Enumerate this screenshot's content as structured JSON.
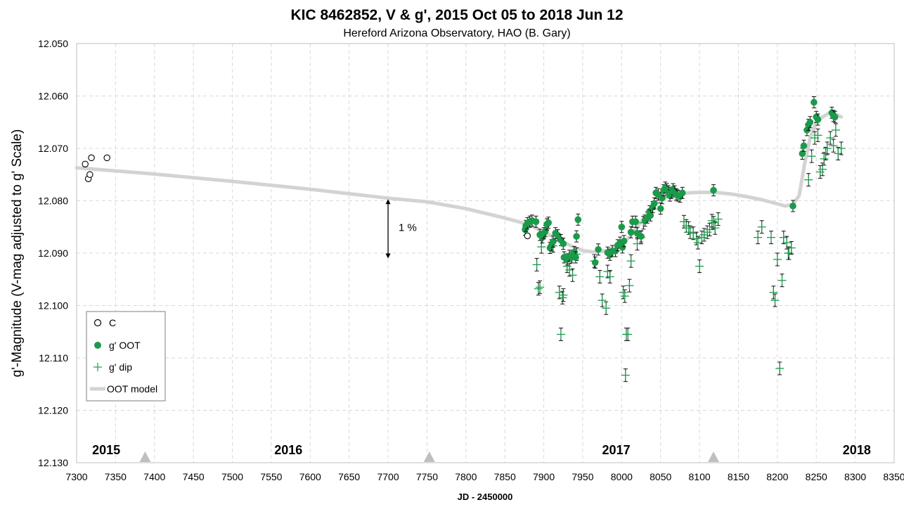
{
  "chart_data": {
    "type": "scatter",
    "title": "KIC 8462852, V & g', 2015 Oct 05 to 2018 Jun 12",
    "subtitle": "Hereford Arizona Observatory, HAO (B. Gary)",
    "xlabel": "JD - 2450000",
    "ylabel": "g'-Magnitude  (V-mag adjusted to g' Scale)",
    "xlim": [
      7300,
      8350
    ],
    "ylim": [
      12.13,
      12.05
    ],
    "y_inverted": true,
    "x_ticks": [
      "7300",
      "7350",
      "7400",
      "7450",
      "7500",
      "7550",
      "7600",
      "7650",
      "7700",
      "7750",
      "7800",
      "7850",
      "7900",
      "7950",
      "8000",
      "8050",
      "8100",
      "8150",
      "8200",
      "8250",
      "8300",
      "8350"
    ],
    "y_ticks": [
      "12.050",
      "12.060",
      "12.070",
      "12.080",
      "12.090",
      "12.100",
      "12.110",
      "12.120",
      "12.130"
    ],
    "grid": true,
    "legend_position": "lower-left",
    "year_labels": [
      {
        "label": "2015",
        "x": 7338
      },
      {
        "label": "2016",
        "x": 7572
      },
      {
        "label": "2017",
        "x": 7993
      },
      {
        "label": "2018",
        "x": 8302
      }
    ],
    "year_markers": [
      7388,
      7753,
      8118
    ],
    "annotation": {
      "label": "1 %",
      "x": 7700,
      "y_top": 12.0797,
      "y_bottom": 12.091
    },
    "colors": {
      "C": "#000000",
      "oot": "#1a9b4a",
      "dip": "#1a9b4a",
      "model": "#d3d3d3",
      "grid": "#d9d9d9",
      "marker": "#bfbfbf"
    },
    "series": [
      {
        "name": "C",
        "marker": "open-circle",
        "points": [
          [
            7311,
            12.073
          ],
          [
            7315,
            12.0758
          ],
          [
            7317,
            12.075
          ],
          [
            7319,
            12.0718
          ],
          [
            7339,
            12.0718
          ],
          [
            7879,
            12.0867
          ]
        ]
      },
      {
        "name": "g' OOT",
        "marker": "filled-circle",
        "points": [
          [
            7876,
            12.0855
          ],
          [
            7877,
            12.0848
          ],
          [
            7879,
            12.0843
          ],
          [
            7882,
            12.084
          ],
          [
            7885,
            12.0838
          ],
          [
            7890,
            12.084
          ],
          [
            7895,
            12.0865
          ],
          [
            7898,
            12.087
          ],
          [
            7900,
            12.0862
          ],
          [
            7902,
            12.0858
          ],
          [
            7904,
            12.0845
          ],
          [
            7906,
            12.0842
          ],
          [
            7908,
            12.089
          ],
          [
            7910,
            12.0885
          ],
          [
            7912,
            12.0878
          ],
          [
            7915,
            12.0862
          ],
          [
            7918,
            12.0866
          ],
          [
            7922,
            12.0875
          ],
          [
            7925,
            12.0882
          ],
          [
            7926,
            12.0908
          ],
          [
            7930,
            12.0912
          ],
          [
            7933,
            12.0905
          ],
          [
            7936,
            12.0908
          ],
          [
            7939,
            12.0898
          ],
          [
            7941,
            12.0908
          ],
          [
            7942,
            12.0868
          ],
          [
            7944,
            12.0836
          ],
          [
            7966,
            12.0918
          ],
          [
            7970,
            12.0893
          ],
          [
            7982,
            12.0899
          ],
          [
            7985,
            12.0903
          ],
          [
            7988,
            12.0896
          ],
          [
            7992,
            12.0896
          ],
          [
            7995,
            12.0885
          ],
          [
            7998,
            12.088
          ],
          [
            8001,
            12.0889
          ],
          [
            8003,
            12.0877
          ],
          [
            8000,
            12.085
          ],
          [
            8012,
            12.086
          ],
          [
            8014,
            12.084
          ],
          [
            8018,
            12.084
          ],
          [
            8020,
            12.0862
          ],
          [
            8025,
            12.0868
          ],
          [
            8030,
            12.0838
          ],
          [
            8033,
            12.0832
          ],
          [
            8036,
            12.082
          ],
          [
            8037,
            12.0828
          ],
          [
            8040,
            12.0812
          ],
          [
            8042,
            12.0805
          ],
          [
            8044,
            12.0785
          ],
          [
            8047,
            12.0788
          ],
          [
            8050,
            12.0815
          ],
          [
            8052,
            12.0795
          ],
          [
            8054,
            12.078
          ],
          [
            8056,
            12.0775
          ],
          [
            8058,
            12.0778
          ],
          [
            8060,
            12.0782
          ],
          [
            8062,
            12.079
          ],
          [
            8064,
            12.0785
          ],
          [
            8066,
            12.0778
          ],
          [
            8068,
            12.0782
          ],
          [
            8070,
            12.0788
          ],
          [
            8072,
            12.079
          ],
          [
            8075,
            12.0792
          ],
          [
            8078,
            12.0785
          ],
          [
            8118,
            12.078
          ],
          [
            8220,
            12.081
          ],
          [
            8232,
            12.071
          ],
          [
            8234,
            12.0695
          ],
          [
            8238,
            12.0665
          ],
          [
            8240,
            12.0655
          ],
          [
            8242,
            12.065
          ],
          [
            8247,
            12.0612
          ],
          [
            8250,
            12.064
          ],
          [
            8252,
            12.0645
          ],
          [
            8270,
            12.0632
          ],
          [
            8272,
            12.0638
          ],
          [
            8274,
            12.064
          ]
        ]
      },
      {
        "name": "g' dip",
        "marker": "plus",
        "points": [
          [
            7891,
            12.0922
          ],
          [
            7893,
            12.0968
          ],
          [
            7895,
            12.0965
          ],
          [
            7897,
            12.0888
          ],
          [
            7912,
            12.0886
          ],
          [
            7920,
            12.0975
          ],
          [
            7922,
            12.1055
          ],
          [
            7924,
            12.0985
          ],
          [
            7925,
            12.098
          ],
          [
            7930,
            12.0925
          ],
          [
            7933,
            12.0932
          ],
          [
            7937,
            12.0942
          ],
          [
            7942,
            12.0902
          ],
          [
            7965,
            12.0915
          ],
          [
            7972,
            12.0945
          ],
          [
            7975,
            12.099
          ],
          [
            7980,
            12.1005
          ],
          [
            7982,
            12.0935
          ],
          [
            7985,
            12.0945
          ],
          [
            8002,
            12.0975
          ],
          [
            8004,
            12.0982
          ],
          [
            8006,
            12.1055
          ],
          [
            8008,
            12.1055
          ],
          [
            8005,
            12.1133
          ],
          [
            8010,
            12.0962
          ],
          [
            8012,
            12.0915
          ],
          [
            8020,
            12.0882
          ],
          [
            8025,
            12.087
          ],
          [
            8028,
            12.0842
          ],
          [
            8080,
            12.084
          ],
          [
            8083,
            12.0848
          ],
          [
            8086,
            12.0852
          ],
          [
            8088,
            12.086
          ],
          [
            8092,
            12.0862
          ],
          [
            8096,
            12.0872
          ],
          [
            8098,
            12.088
          ],
          [
            8100,
            12.0925
          ],
          [
            8103,
            12.087
          ],
          [
            8106,
            12.0865
          ],
          [
            8110,
            12.086
          ],
          [
            8113,
            12.0855
          ],
          [
            8116,
            12.0838
          ],
          [
            8118,
            12.0842
          ],
          [
            8120,
            12.0852
          ],
          [
            8124,
            12.0835
          ],
          [
            8175,
            12.087
          ],
          [
            8180,
            12.085
          ],
          [
            8192,
            12.087
          ],
          [
            8195,
            12.0975
          ],
          [
            8197,
            12.099
          ],
          [
            8200,
            12.0912
          ],
          [
            8203,
            12.112
          ],
          [
            8206,
            12.0952
          ],
          [
            8208,
            12.087
          ],
          [
            8212,
            12.088
          ],
          [
            8214,
            12.09
          ],
          [
            8215,
            12.09
          ],
          [
            8218,
            12.089
          ],
          [
            8240,
            12.076
          ],
          [
            8244,
            12.0715
          ],
          [
            8248,
            12.068
          ],
          [
            8252,
            12.0675
          ],
          [
            8255,
            12.0745
          ],
          [
            8258,
            12.074
          ],
          [
            8260,
            12.072
          ],
          [
            8262,
            12.071
          ],
          [
            8264,
            12.07
          ],
          [
            8268,
            12.068
          ],
          [
            8272,
            12.0695
          ],
          [
            8275,
            12.0665
          ],
          [
            8278,
            12.071
          ],
          [
            8282,
            12.07
          ]
        ]
      },
      {
        "name": "OOT model",
        "marker": "line",
        "points": [
          [
            7300,
            12.0737
          ],
          [
            7400,
            12.0749
          ],
          [
            7500,
            12.0763
          ],
          [
            7600,
            12.0778
          ],
          [
            7700,
            12.0795
          ],
          [
            7750,
            12.0802
          ],
          [
            7800,
            12.0815
          ],
          [
            7850,
            12.0833
          ],
          [
            7880,
            12.0845
          ],
          [
            7900,
            12.086
          ],
          [
            7920,
            12.0875
          ],
          [
            7935,
            12.0886
          ],
          [
            7950,
            12.0895
          ],
          [
            7965,
            12.0898
          ],
          [
            7980,
            12.0895
          ],
          [
            7995,
            12.0887
          ],
          [
            8010,
            12.087
          ],
          [
            8025,
            12.084
          ],
          [
            8040,
            12.0808
          ],
          [
            8055,
            12.0795
          ],
          [
            8070,
            12.079
          ],
          [
            8085,
            12.0785
          ],
          [
            8100,
            12.0784
          ],
          [
            8120,
            12.0784
          ],
          [
            8140,
            12.0787
          ],
          [
            8160,
            12.0792
          ],
          [
            8180,
            12.0798
          ],
          [
            8200,
            12.0806
          ],
          [
            8210,
            12.081
          ],
          [
            8220,
            12.0807
          ],
          [
            8228,
            12.079
          ],
          [
            8235,
            12.073
          ],
          [
            8242,
            12.068
          ],
          [
            8250,
            12.065
          ],
          [
            8258,
            12.064
          ],
          [
            8266,
            12.0633
          ],
          [
            8275,
            12.0635
          ],
          [
            8282,
            12.064
          ]
        ]
      }
    ]
  }
}
